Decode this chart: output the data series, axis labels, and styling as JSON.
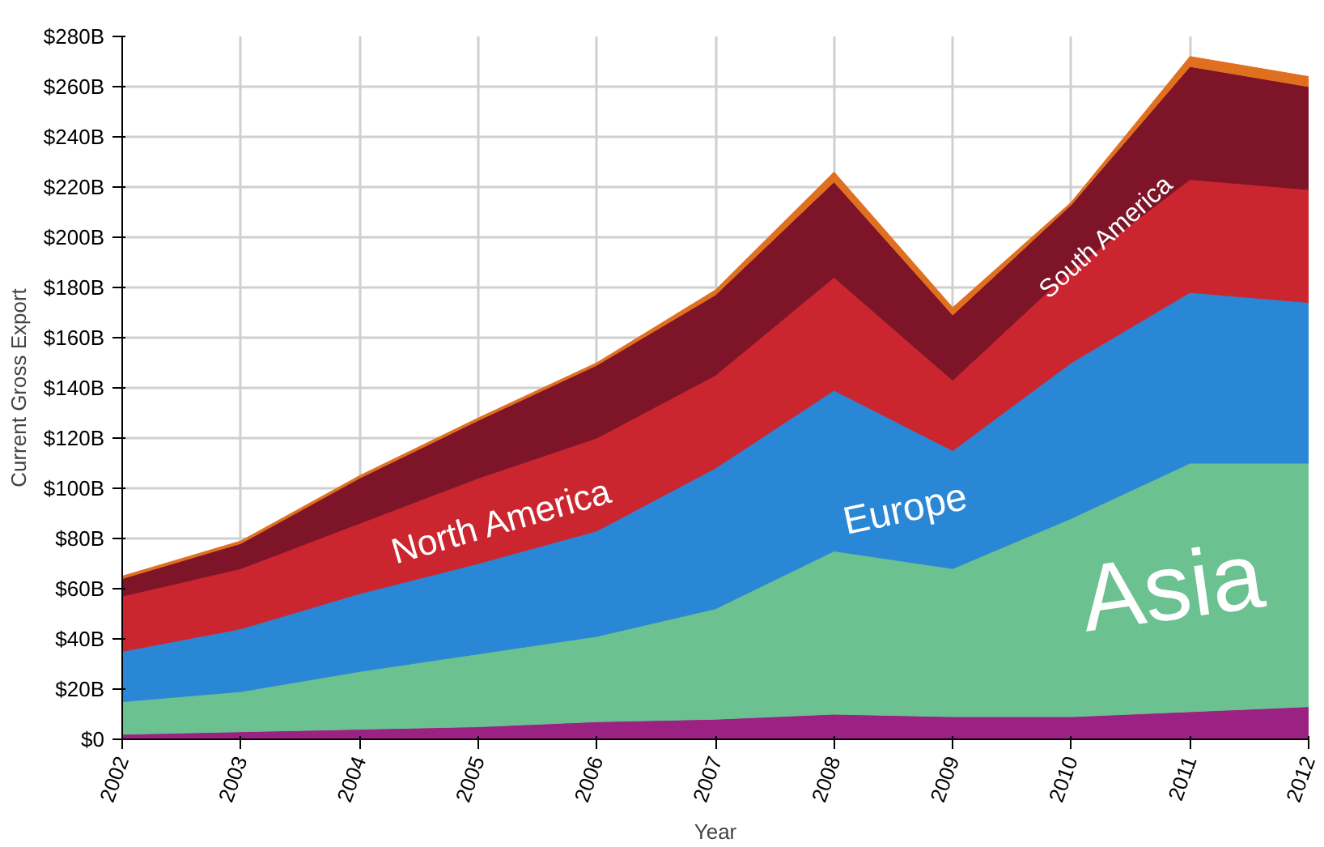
{
  "chart_data": {
    "type": "area",
    "stacked": true,
    "xlabel": "Year",
    "ylabel": "Current Gross Export",
    "x": [
      2002,
      2003,
      2004,
      2005,
      2006,
      2007,
      2008,
      2009,
      2010,
      2011,
      2012
    ],
    "xlim": [
      2002,
      2012
    ],
    "xticks": [
      2002,
      2003,
      2004,
      2005,
      2006,
      2007,
      2008,
      2009,
      2010,
      2011,
      2012
    ],
    "ylim": [
      0,
      280
    ],
    "yticks": [
      {
        "value": 0,
        "label": "$0"
      },
      {
        "value": 20,
        "label": "$20B"
      },
      {
        "value": 40,
        "label": "$40B"
      },
      {
        "value": 60,
        "label": "$60B"
      },
      {
        "value": 80,
        "label": "$80B"
      },
      {
        "value": 100,
        "label": "$100B"
      },
      {
        "value": 120,
        "label": "$120B"
      },
      {
        "value": 140,
        "label": "$140B"
      },
      {
        "value": 160,
        "label": "$160B"
      },
      {
        "value": 180,
        "label": "$180B"
      },
      {
        "value": 200,
        "label": "$200B"
      },
      {
        "value": 220,
        "label": "$220B"
      },
      {
        "value": 240,
        "label": "$240B"
      },
      {
        "value": 260,
        "label": "$260B"
      },
      {
        "value": 280,
        "label": "$280B"
      }
    ],
    "grid": true,
    "series": [
      {
        "color": "#9b2282",
        "values": [
          2,
          3,
          4,
          5,
          7,
          8,
          10,
          9,
          9,
          11,
          13
        ]
      },
      {
        "name": "Asia",
        "color": "#6cc191",
        "values": [
          13,
          16,
          23,
          29,
          34,
          44,
          65,
          59,
          79,
          99,
          97
        ]
      },
      {
        "name": "Europe",
        "color": "#2a87d5",
        "values": [
          20,
          25,
          31,
          36,
          42,
          56,
          64,
          47,
          62,
          68,
          64
        ]
      },
      {
        "name": "North America",
        "color": "#cb2630",
        "values": [
          22,
          24,
          28,
          34,
          37,
          37,
          45,
          28,
          37,
          45,
          45
        ]
      },
      {
        "name": "South America",
        "color": "#7e1427",
        "values": [
          7,
          10,
          18,
          23,
          29,
          32,
          38,
          26,
          26,
          45,
          41
        ]
      },
      {
        "color": "#e07020",
        "values": [
          1,
          1,
          1,
          1,
          1,
          2,
          4,
          3,
          1,
          4,
          4
        ]
      }
    ]
  }
}
